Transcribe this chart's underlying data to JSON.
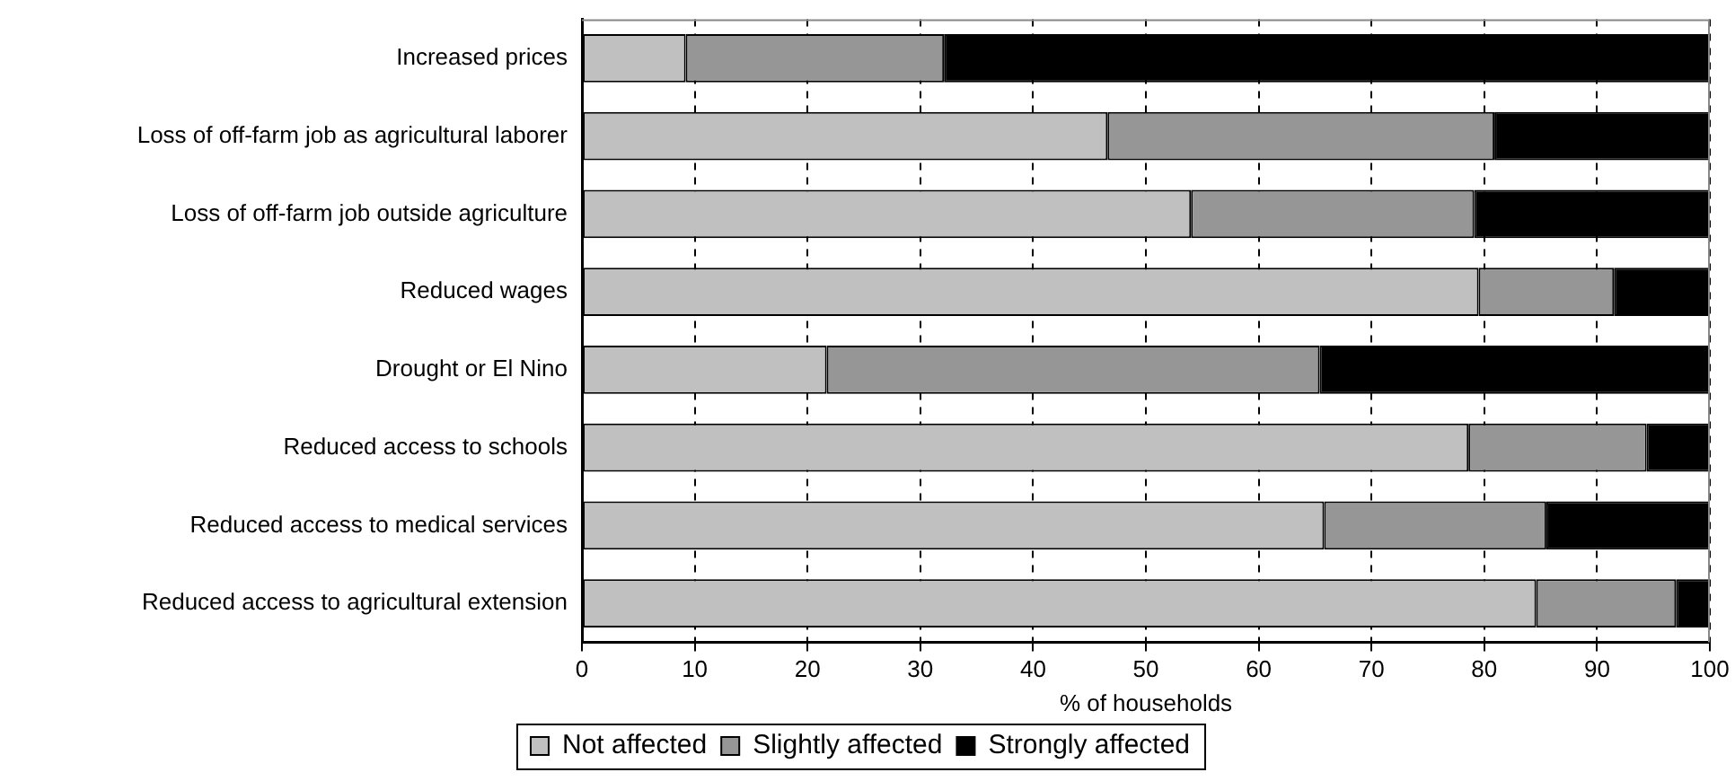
{
  "chart_data": {
    "type": "bar",
    "orientation": "horizontal",
    "stacked": true,
    "xlabel": "% of households",
    "categories": [
      "Increased prices",
      "Loss of off-farm job as agricultural laborer",
      "Loss of off-farm job outside agriculture",
      "Reduced wages",
      "Drought or El Nino",
      "Reduced access to schools",
      "Reduced access to medical services",
      "Reduced access to agricultural extension"
    ],
    "series": [
      {
        "name": "Not affected",
        "color": "#c0c0c0",
        "values": [
          9.2,
          46.6,
          54.0,
          79.5,
          21.7,
          78.6,
          65.8,
          84.6
        ]
      },
      {
        "name": "Slightly affected",
        "color": "#969696",
        "values": [
          22.9,
          34.3,
          25.1,
          12.0,
          43.7,
          15.8,
          19.7,
          12.4
        ]
      },
      {
        "name": "Strongly affected",
        "color": "#000000",
        "values": [
          67.9,
          19.1,
          20.9,
          8.5,
          34.6,
          5.6,
          14.5,
          3.0
        ]
      }
    ],
    "xlim": [
      0,
      100
    ],
    "xticks": [
      0,
      10,
      20,
      30,
      40,
      50,
      60,
      70,
      80,
      90,
      100
    ],
    "grid": "x",
    "legend": "bottom"
  }
}
